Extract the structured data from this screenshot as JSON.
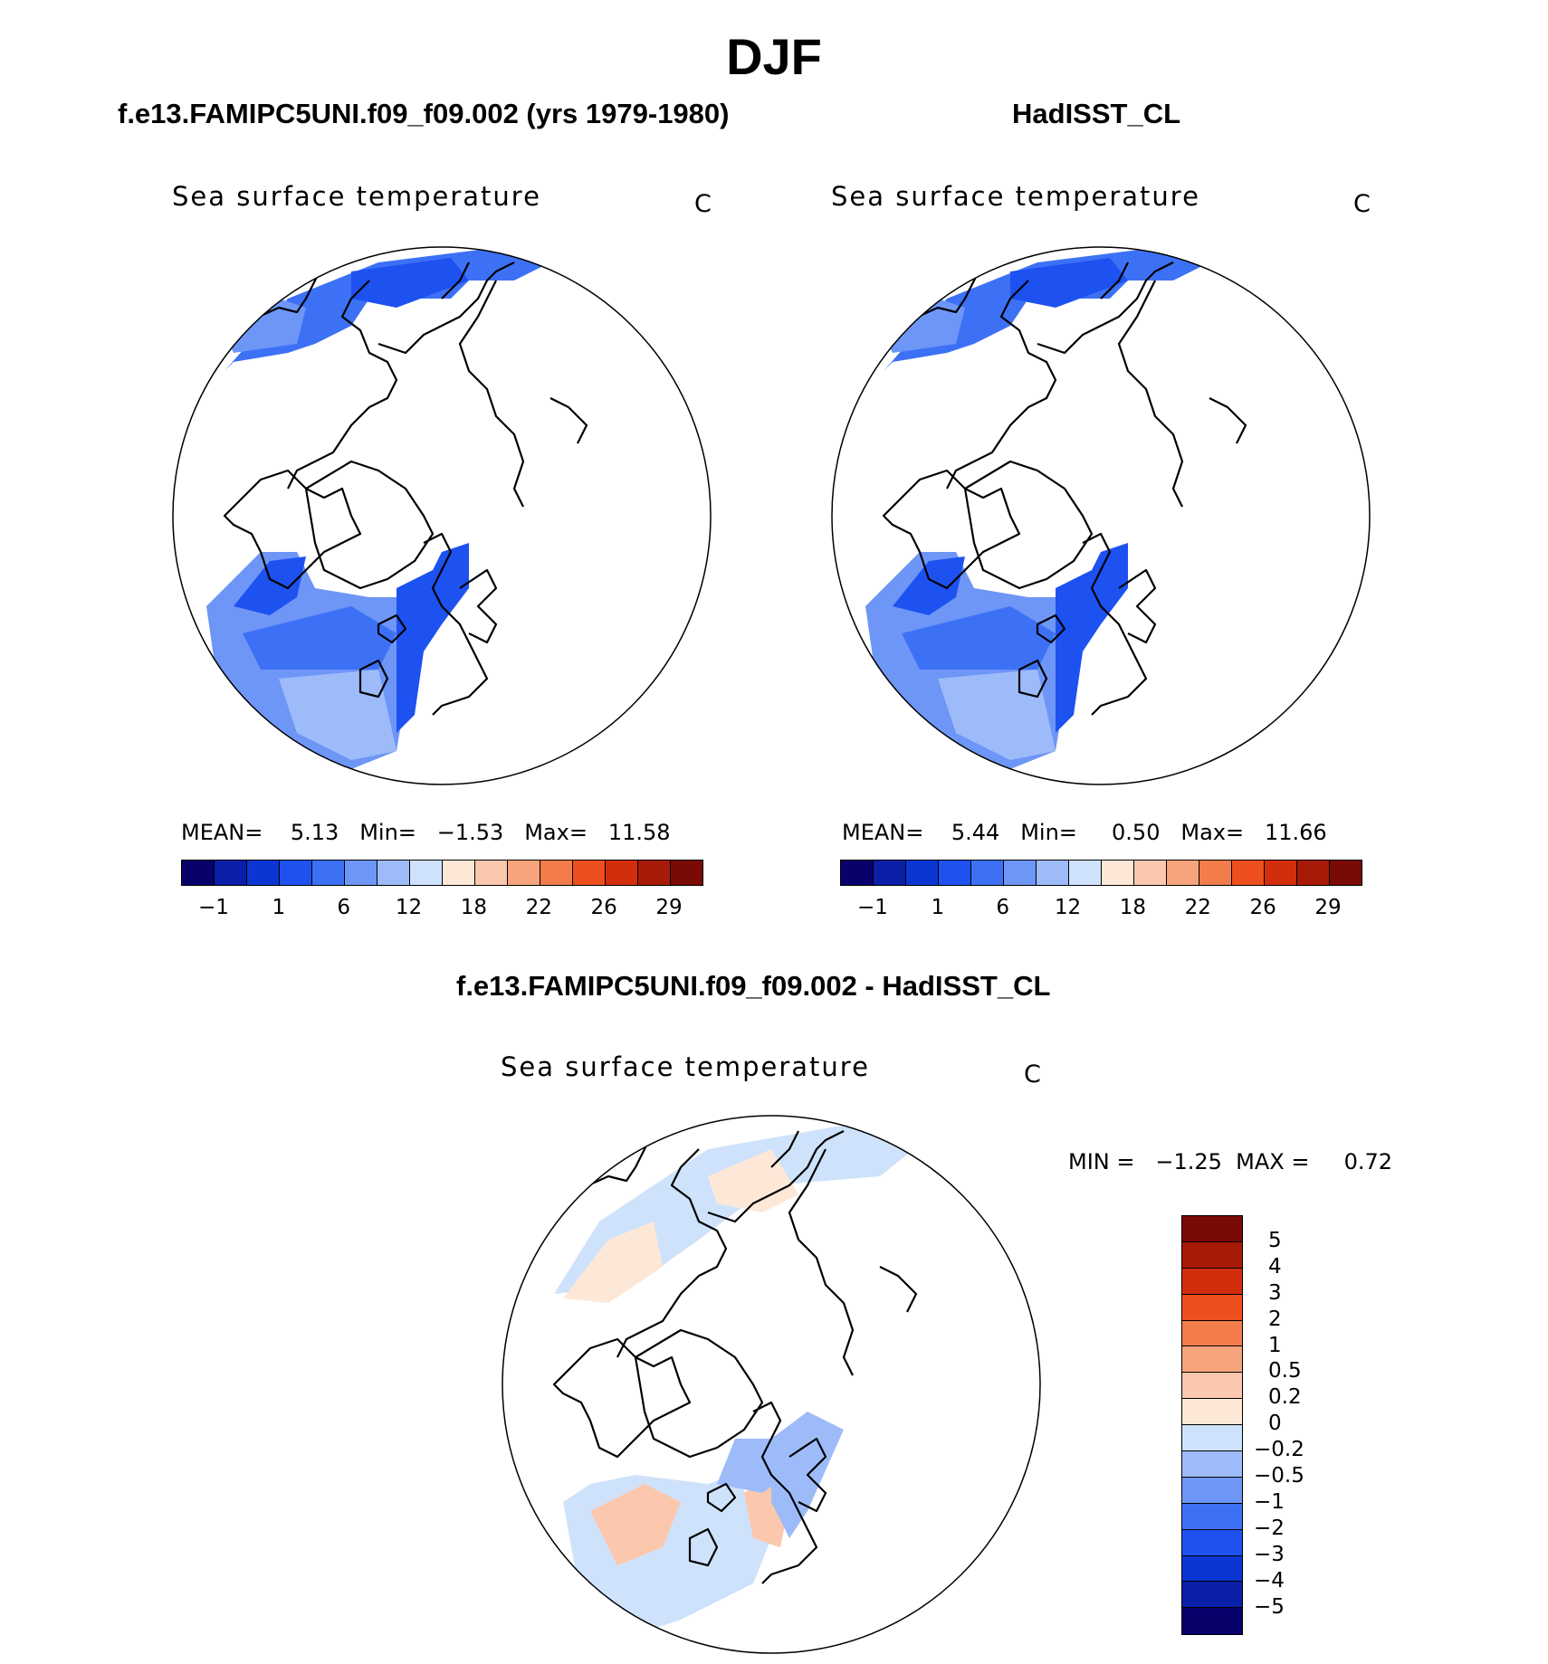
{
  "title": "DJF",
  "panels": [
    {
      "case_title": "f.e13.FAMIPC5UNI.f09_f09.002 (yrs 1979-1980)",
      "variable": "Sea surface temperature",
      "unit": "C",
      "stats_text": "MEAN=    5.13   Min=   −1.53   Max=   11.58"
    },
    {
      "case_title": "HadISST_CL",
      "variable": "Sea surface temperature",
      "unit": "C",
      "stats_text": "MEAN=    5.44   Min=     0.50   Max=   11.66"
    },
    {
      "case_title": "f.e13.FAMIPC5UNI.f09_f09.002 - HadISST_CL",
      "variable": "Sea surface temperature",
      "unit": "C",
      "stats_text": "MIN =   −1.25  MAX =     0.72"
    }
  ],
  "chart_data": [
    {
      "type": "heatmap",
      "title": "f.e13.FAMIPC5UNI.f09_f09.002 (yrs 1979-1980)",
      "variable": "Sea surface temperature",
      "unit": "C",
      "projection": "north polar stereographic",
      "mean": 5.13,
      "min": -1.53,
      "max": 11.58,
      "colorbar": {
        "orientation": "horizontal",
        "tick_labels": [
          "−1",
          "1",
          "6",
          "12",
          "18",
          "22",
          "26",
          "29"
        ],
        "colors": [
          "#08006b",
          "#0a1fa8",
          "#0c36d4",
          "#1d52f0",
          "#3d71f5",
          "#6e96f7",
          "#9ebbf9",
          "#cfe2fb",
          "#fde8d8",
          "#fbc8ad",
          "#f7a47c",
          "#f37c4b",
          "#ee4f1f",
          "#d22e0c",
          "#a81a08",
          "#7a0a04"
        ]
      }
    },
    {
      "type": "heatmap",
      "title": "HadISST_CL",
      "variable": "Sea surface temperature",
      "unit": "C",
      "projection": "north polar stereographic",
      "mean": 5.44,
      "min": 0.5,
      "max": 11.66,
      "colorbar": {
        "orientation": "horizontal",
        "tick_labels": [
          "−1",
          "1",
          "6",
          "12",
          "18",
          "22",
          "26",
          "29"
        ],
        "colors": [
          "#08006b",
          "#0a1fa8",
          "#0c36d4",
          "#1d52f0",
          "#3d71f5",
          "#6e96f7",
          "#9ebbf9",
          "#cfe2fb",
          "#fde8d8",
          "#fbc8ad",
          "#f7a47c",
          "#f37c4b",
          "#ee4f1f",
          "#d22e0c",
          "#a81a08",
          "#7a0a04"
        ]
      }
    },
    {
      "type": "heatmap",
      "title": "f.e13.FAMIPC5UNI.f09_f09.002 - HadISST_CL",
      "variable": "Sea surface temperature",
      "unit": "C",
      "projection": "north polar stereographic",
      "min": -1.25,
      "max": 0.72,
      "colorbar": {
        "orientation": "vertical",
        "tick_labels": [
          "5",
          "4",
          "3",
          "2",
          "1",
          "0.5",
          "0.2",
          "0",
          "−0.2",
          "−0.5",
          "−1",
          "−2",
          "−3",
          "−4",
          "−5"
        ],
        "colors": [
          "#7a0a04",
          "#a81a08",
          "#d22e0c",
          "#ee4f1f",
          "#f37c4b",
          "#f7a47c",
          "#fbc8ad",
          "#fde8d8",
          "#cfe2fb",
          "#9ebbf9",
          "#6e96f7",
          "#3d71f5",
          "#1d52f0",
          "#0c36d4",
          "#0a1fa8",
          "#08006b"
        ]
      }
    }
  ]
}
